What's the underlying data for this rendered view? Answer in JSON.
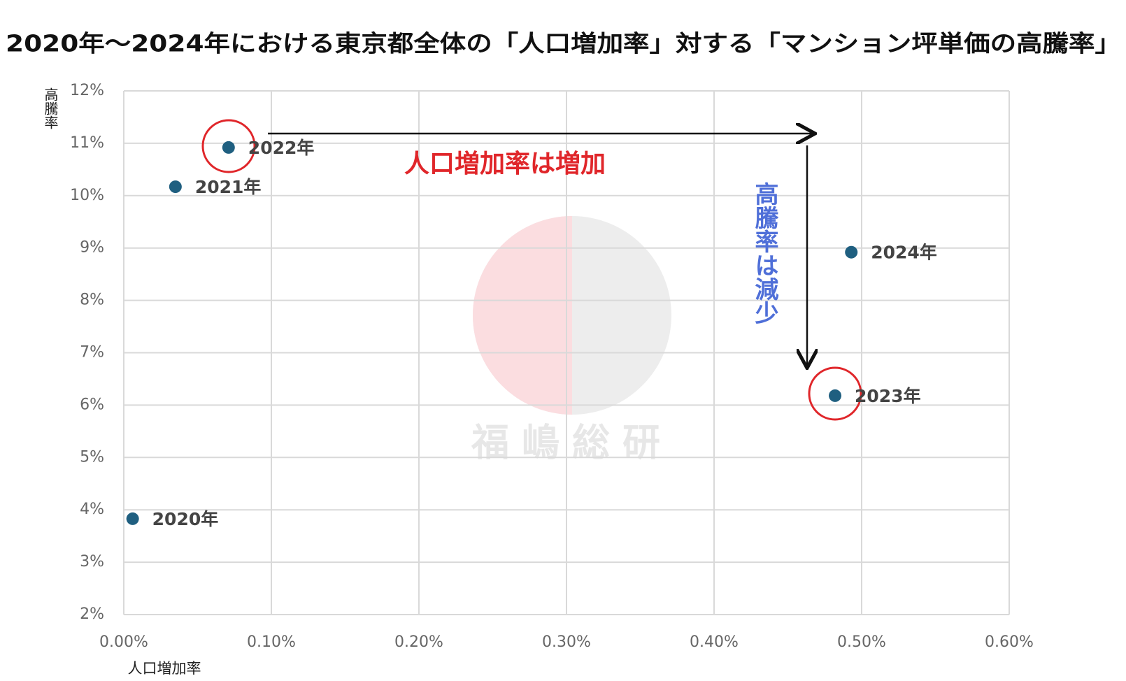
{
  "chart_data": {
    "type": "scatter",
    "title": "2020年〜2024年における東京都全体の「人口増加率」対する「マンション坪単価の高騰率」",
    "x_label": "人口増加率",
    "y_label": "高騰率",
    "x": [
      0.006,
      0.035,
      0.071,
      0.482,
      0.493
    ],
    "series": [
      {
        "color": "#1f5f80",
        "values": [
          3.83,
          10.17,
          10.92,
          6.18,
          8.92
        ]
      }
    ],
    "point_labels": [
      "2020年",
      "2021年",
      "2022年",
      "2023年",
      "2024年"
    ],
    "xlim": [
      0,
      0.6
    ],
    "xticks": [
      {
        "value": 0,
        "label": "0.00%"
      },
      {
        "value": 0.1,
        "label": "0.10%"
      },
      {
        "value": 0.2,
        "label": "0.20%"
      },
      {
        "value": 0.3,
        "label": "0.30%"
      },
      {
        "value": 0.4,
        "label": "0.40%"
      },
      {
        "value": 0.5,
        "label": "0.50%"
      },
      {
        "value": 0.6,
        "label": "0.60%"
      }
    ],
    "ylim": [
      2,
      12
    ],
    "yticks": [
      {
        "value": 2,
        "label": "2%"
      },
      {
        "value": 3,
        "label": "3%"
      },
      {
        "value": 4,
        "label": "4%"
      },
      {
        "value": 5,
        "label": "5%"
      },
      {
        "value": 6,
        "label": "6%"
      },
      {
        "value": 7,
        "label": "7%"
      },
      {
        "value": 8,
        "label": "8%"
      },
      {
        "value": 9,
        "label": "9%"
      },
      {
        "value": 10,
        "label": "10%"
      },
      {
        "value": 11,
        "label": "11%"
      },
      {
        "value": 12,
        "label": "12%"
      }
    ],
    "grid": true,
    "annotations": [
      "人口増加率は増加",
      "高騰率は減少"
    ],
    "watermark": "福嶋総研"
  }
}
